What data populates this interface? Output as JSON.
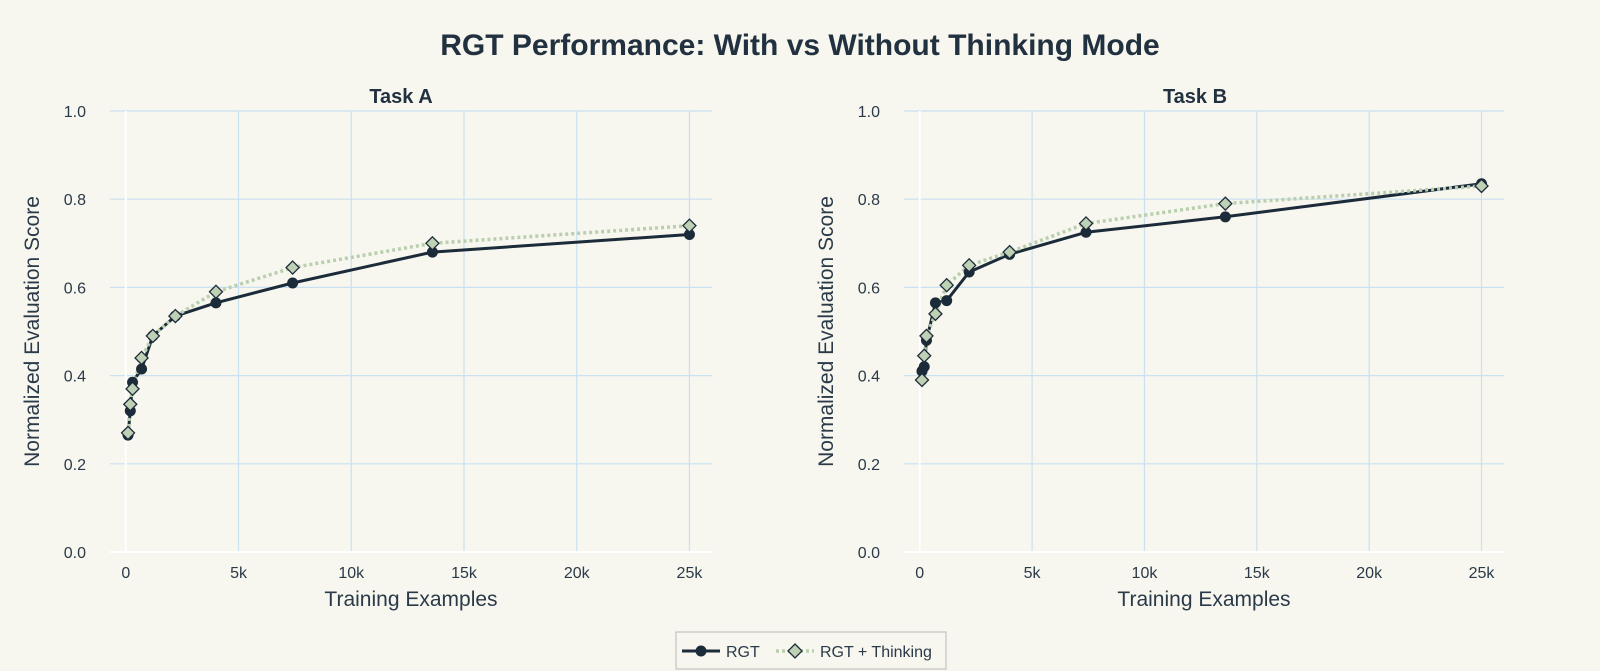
{
  "title": "RGT Performance: With vs Without Thinking Mode",
  "legend": {
    "items": [
      "RGT",
      "RGT + Thinking"
    ]
  },
  "colors": {
    "rgt": "#1c2b39",
    "thinking_line": "#b9cfae",
    "thinking_marker": "#bfd1b5",
    "background": "#f7f6ef",
    "grid": "#c9e1f0"
  },
  "chart_data": [
    {
      "type": "line",
      "title": "Task A",
      "xlabel": "Training Examples",
      "ylabel": "Normalized Evaluation Score",
      "xlim": [
        -700,
        26000
      ],
      "ylim": [
        0,
        1
      ],
      "x_ticks": [
        0,
        5000,
        10000,
        15000,
        20000,
        25000
      ],
      "x_tick_labels": [
        "0",
        "5k",
        "10k",
        "15k",
        "20k",
        "25k"
      ],
      "y_ticks": [
        0,
        0.2,
        0.4,
        0.6,
        0.8,
        1
      ],
      "y_tick_labels": [
        "0.0",
        "0.2",
        "0.4",
        "0.6",
        "0.8",
        "1.0"
      ],
      "grid": true,
      "legend_position": "bottom-center",
      "series": [
        {
          "name": "RGT",
          "x": [
            100,
            200,
            300,
            700,
            1200,
            2200,
            4000,
            7400,
            13600,
            25000
          ],
          "y": [
            0.265,
            0.32,
            0.385,
            0.415,
            0.49,
            0.535,
            0.565,
            0.61,
            0.68,
            0.72
          ]
        },
        {
          "name": "RGT + Thinking",
          "x": [
            100,
            200,
            300,
            700,
            1200,
            2200,
            4000,
            7400,
            13600,
            25000
          ],
          "y": [
            0.27,
            0.335,
            0.37,
            0.44,
            0.49,
            0.535,
            0.59,
            0.645,
            0.7,
            0.74
          ]
        }
      ]
    },
    {
      "type": "line",
      "title": "Task B",
      "xlabel": "Training Examples",
      "ylabel": "Normalized Evaluation Score",
      "xlim": [
        -700,
        26000
      ],
      "ylim": [
        0,
        1
      ],
      "x_ticks": [
        0,
        5000,
        10000,
        15000,
        20000,
        25000
      ],
      "x_tick_labels": [
        "0",
        "5k",
        "10k",
        "15k",
        "20k",
        "25k"
      ],
      "y_ticks": [
        0,
        0.2,
        0.4,
        0.6,
        0.8,
        1
      ],
      "y_tick_labels": [
        "0.0",
        "0.2",
        "0.4",
        "0.6",
        "0.8",
        "1.0"
      ],
      "grid": true,
      "legend_position": "bottom-center",
      "series": [
        {
          "name": "RGT",
          "x": [
            100,
            200,
            300,
            700,
            1200,
            2200,
            4000,
            7400,
            13600,
            25000
          ],
          "y": [
            0.41,
            0.42,
            0.48,
            0.565,
            0.57,
            0.635,
            0.675,
            0.725,
            0.76,
            0.835
          ]
        },
        {
          "name": "RGT + Thinking",
          "x": [
            100,
            200,
            300,
            700,
            1200,
            2200,
            4000,
            7400,
            13600,
            25000
          ],
          "y": [
            0.39,
            0.445,
            0.49,
            0.54,
            0.605,
            0.65,
            0.68,
            0.745,
            0.79,
            0.83
          ]
        }
      ]
    }
  ]
}
